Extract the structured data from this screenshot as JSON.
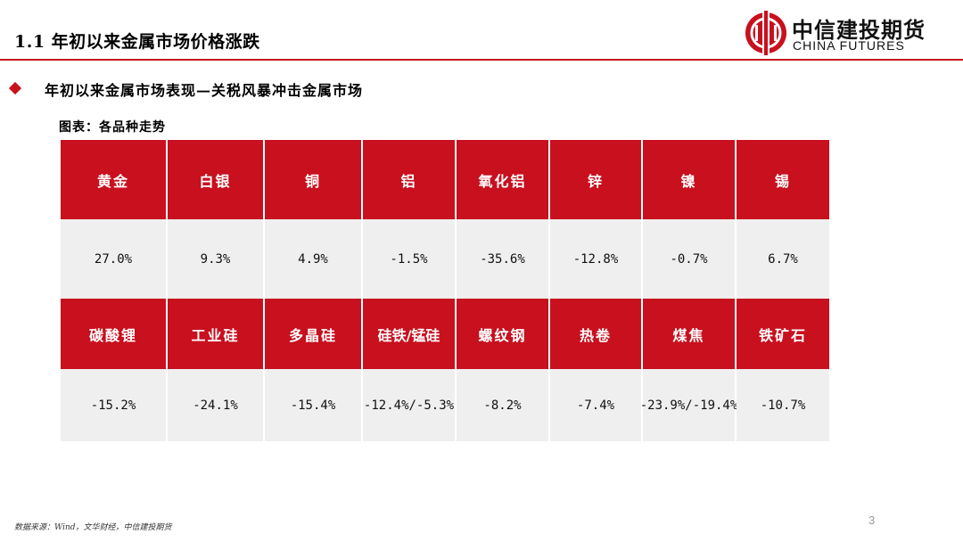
{
  "header": {
    "title": "1.1 年初以来金属市场价格涨跌",
    "logo_cn": "中信建投期货",
    "logo_en": "CHINA FUTURES",
    "accent_color": "#c8101e"
  },
  "subtitle": "年初以来金属市场表现—关税风暴冲击金属市场",
  "caption": "图表：各品种走势",
  "table": {
    "rows": [
      {
        "names": [
          "黄金",
          "白银",
          "铜",
          "铝",
          "氧化铝",
          "锌",
          "镍",
          "锡"
        ],
        "values": [
          "27.0%",
          "9.3%",
          "4.9%",
          "-1.5%",
          "-35.6%",
          "-12.8%",
          "-0.7%",
          "6.7%"
        ]
      },
      {
        "names": [
          "碳酸锂",
          "工业硅",
          "多晶硅",
          "硅铁/锰硅",
          "螺纹钢",
          "热卷",
          "煤焦",
          "铁矿石"
        ],
        "values": [
          "-15.2%",
          "-24.1%",
          "-15.4%",
          "-12.4%/-5.3%",
          "-8.2%",
          "-7.4%",
          "-23.9%/-19.4%",
          "-10.7%"
        ]
      }
    ]
  },
  "footer": {
    "source": "数据来源：Wind，文华财经，中信建投期货",
    "page_number": "3"
  }
}
